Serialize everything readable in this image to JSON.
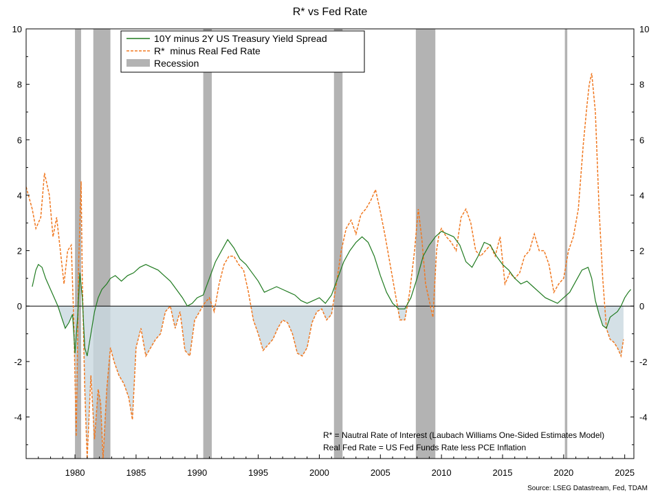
{
  "chart_data": {
    "type": "line",
    "title": "R* vs Fed Rate",
    "xlim": [
      1976.0,
      2025.75
    ],
    "ylim": [
      -5.5,
      10
    ],
    "y_ticks": [
      -4,
      -2,
      0,
      2,
      4,
      6,
      8,
      10
    ],
    "y_tick_labels": [
      "-4",
      "-2",
      "0",
      "2",
      "4",
      "6",
      "8",
      "10"
    ],
    "x_ticks": [
      1980,
      1985,
      1990,
      1995,
      2000,
      2005,
      2010,
      2015,
      2020,
      2025
    ],
    "x_tick_labels": [
      "1980",
      "1985",
      "1990",
      "1995",
      "2000",
      "2005",
      "2010",
      "2015",
      "2020",
      "2025"
    ],
    "legend_position": "top-left",
    "colors": {
      "spread": "#1f7a1f",
      "rstar": "#f07820",
      "recession": "#b3b3b3",
      "fill": "#c9d8e0",
      "zero_line": "#000000"
    },
    "recessions": [
      [
        1980.0,
        1980.5
      ],
      [
        1981.5,
        1982.9
      ],
      [
        1990.5,
        1991.2
      ],
      [
        2001.2,
        2001.9
      ],
      [
        2007.9,
        2009.5
      ],
      [
        2020.1,
        2020.3
      ]
    ],
    "series": [
      {
        "name": "10Y minus 2Y US Treasury Yield Spread",
        "style": "solid",
        "x": [
          1976.5,
          1976.8,
          1977.0,
          1977.3,
          1977.6,
          1978.0,
          1978.3,
          1978.6,
          1978.9,
          1979.2,
          1979.5,
          1979.8,
          1980.0,
          1980.2,
          1980.4,
          1980.6,
          1980.8,
          1981.0,
          1981.3,
          1981.6,
          1981.9,
          1982.2,
          1982.6,
          1982.9,
          1983.3,
          1983.8,
          1984.3,
          1984.8,
          1985.3,
          1985.8,
          1986.3,
          1986.8,
          1987.3,
          1987.8,
          1988.3,
          1988.8,
          1989.2,
          1989.6,
          1990.0,
          1990.5,
          1991.0,
          1991.5,
          1992.0,
          1992.5,
          1993.0,
          1993.5,
          1994.0,
          1994.5,
          1995.0,
          1995.5,
          1996.0,
          1996.5,
          1997.0,
          1997.5,
          1998.0,
          1998.5,
          1999.0,
          1999.5,
          2000.0,
          2000.5,
          2001.0,
          2001.5,
          2002.0,
          2002.5,
          2003.0,
          2003.5,
          2004.0,
          2004.5,
          2005.0,
          2005.5,
          2006.0,
          2006.5,
          2007.0,
          2007.5,
          2008.0,
          2008.5,
          2009.0,
          2009.5,
          2010.0,
          2010.5,
          2011.0,
          2011.5,
          2012.0,
          2012.5,
          2013.0,
          2013.5,
          2014.0,
          2014.5,
          2015.0,
          2015.5,
          2016.0,
          2016.5,
          2017.0,
          2017.5,
          2018.0,
          2018.5,
          2019.0,
          2019.5,
          2020.0,
          2020.5,
          2021.0,
          2021.5,
          2022.0,
          2022.3,
          2022.6,
          2022.9,
          2023.2,
          2023.5,
          2023.8,
          2024.1,
          2024.4,
          2024.7,
          2025.0,
          2025.3,
          2025.5
        ],
        "y": [
          0.7,
          1.3,
          1.5,
          1.4,
          1.0,
          0.6,
          0.3,
          0.0,
          -0.4,
          -0.8,
          -0.6,
          -0.3,
          -1.7,
          -0.5,
          1.2,
          0.3,
          -1.5,
          -1.8,
          -1.0,
          -0.2,
          0.3,
          0.6,
          0.8,
          1.0,
          1.1,
          0.9,
          1.1,
          1.2,
          1.4,
          1.5,
          1.4,
          1.3,
          1.1,
          0.9,
          0.6,
          0.3,
          0.0,
          0.1,
          0.3,
          0.4,
          1.0,
          1.6,
          2.0,
          2.4,
          2.1,
          1.7,
          1.5,
          1.2,
          0.9,
          0.5,
          0.6,
          0.7,
          0.6,
          0.5,
          0.4,
          0.2,
          0.1,
          0.2,
          0.3,
          0.1,
          0.4,
          1.0,
          1.6,
          2.0,
          2.3,
          2.5,
          2.3,
          1.8,
          1.1,
          0.5,
          0.1,
          -0.1,
          -0.1,
          0.3,
          1.0,
          1.8,
          2.2,
          2.5,
          2.7,
          2.6,
          2.5,
          2.2,
          1.6,
          1.4,
          1.8,
          2.3,
          2.2,
          1.8,
          1.5,
          1.3,
          1.0,
          0.8,
          0.9,
          0.7,
          0.5,
          0.3,
          0.2,
          0.1,
          0.3,
          0.5,
          0.9,
          1.3,
          1.4,
          1.0,
          0.2,
          -0.3,
          -0.7,
          -0.8,
          -0.4,
          -0.3,
          -0.2,
          0.0,
          0.3,
          0.5,
          0.6
        ]
      },
      {
        "name": "R*  minus Real Fed Rate",
        "style": "dashed",
        "x": [
          1976.0,
          1976.5,
          1976.8,
          1977.2,
          1977.5,
          1977.9,
          1978.2,
          1978.5,
          1978.8,
          1979.1,
          1979.4,
          1979.7,
          1979.9,
          1980.1,
          1980.3,
          1980.5,
          1980.6,
          1980.8,
          1981.0,
          1981.3,
          1981.6,
          1981.9,
          1982.1,
          1982.3,
          1982.6,
          1982.9,
          1983.2,
          1983.6,
          1984.0,
          1984.4,
          1984.7,
          1985.0,
          1985.4,
          1985.8,
          1986.2,
          1986.6,
          1987.0,
          1987.4,
          1987.8,
          1988.2,
          1988.6,
          1989.0,
          1989.4,
          1989.8,
          1990.2,
          1990.6,
          1991.0,
          1991.4,
          1991.8,
          1992.2,
          1992.6,
          1993.0,
          1993.4,
          1993.8,
          1994.2,
          1994.6,
          1995.0,
          1995.4,
          1995.8,
          1996.2,
          1996.6,
          1997.0,
          1997.4,
          1997.8,
          1998.2,
          1998.6,
          1999.0,
          1999.4,
          1999.8,
          2000.2,
          2000.6,
          2001.0,
          2001.4,
          2001.8,
          2002.2,
          2002.6,
          2003.0,
          2003.4,
          2003.8,
          2004.2,
          2004.6,
          2005.0,
          2005.4,
          2005.8,
          2006.2,
          2006.6,
          2007.0,
          2007.4,
          2007.8,
          2008.1,
          2008.4,
          2008.7,
          2009.0,
          2009.3,
          2009.6,
          2009.8,
          2010.0,
          2010.4,
          2010.8,
          2011.2,
          2011.6,
          2012.0,
          2012.4,
          2012.8,
          2013.2,
          2013.6,
          2014.0,
          2014.4,
          2014.8,
          2015.2,
          2015.6,
          2016.0,
          2016.4,
          2016.8,
          2017.2,
          2017.6,
          2018.0,
          2018.4,
          2018.8,
          2019.2,
          2019.6,
          2020.0,
          2020.4,
          2020.8,
          2021.2,
          2021.6,
          2021.9,
          2022.1,
          2022.3,
          2022.6,
          2022.9,
          2023.2,
          2023.5,
          2023.8,
          2024.1,
          2024.4,
          2024.7,
          2024.9
        ],
        "y": [
          4.3,
          3.5,
          2.8,
          3.2,
          4.8,
          4.0,
          2.5,
          3.2,
          2.0,
          0.8,
          2.0,
          2.2,
          -0.5,
          -4.7,
          1.5,
          4.5,
          1.0,
          -3.0,
          -5.5,
          -2.5,
          -4.8,
          -3.0,
          -3.5,
          -5.5,
          -3.0,
          -1.5,
          -2.0,
          -2.5,
          -2.8,
          -3.3,
          -4.1,
          -1.5,
          -0.8,
          -1.8,
          -1.5,
          -1.2,
          -1.0,
          -0.2,
          0.0,
          -0.8,
          -0.2,
          -1.6,
          -1.8,
          -0.5,
          -0.2,
          0.1,
          0.3,
          -0.2,
          0.8,
          1.5,
          1.8,
          1.8,
          1.5,
          1.3,
          0.5,
          -0.5,
          -1.0,
          -1.6,
          -1.4,
          -1.2,
          -0.8,
          -0.5,
          -0.6,
          -1.0,
          -1.7,
          -1.8,
          -1.5,
          -0.6,
          -0.2,
          -0.1,
          -0.5,
          -0.3,
          0.8,
          2.0,
          2.8,
          3.1,
          2.6,
          3.3,
          3.5,
          3.8,
          4.2,
          3.4,
          2.5,
          1.5,
          0.5,
          -0.5,
          -0.5,
          0.5,
          2.0,
          3.5,
          2.4,
          0.8,
          0.2,
          -0.4,
          2.0,
          2.6,
          2.8,
          2.5,
          2.3,
          2.0,
          3.2,
          3.5,
          3.0,
          2.0,
          1.8,
          2.0,
          2.2,
          1.8,
          2.5,
          0.8,
          1.2,
          1.0,
          1.2,
          1.8,
          2.0,
          2.6,
          2.0,
          2.0,
          1.5,
          0.5,
          0.8,
          1.0,
          2.0,
          2.5,
          3.5,
          5.8,
          7.2,
          8.0,
          8.4,
          7.0,
          3.5,
          1.0,
          -0.8,
          -1.2,
          -1.3,
          -1.5,
          -1.8,
          -1.2
        ]
      }
    ],
    "legend": [
      {
        "label": "10Y minus 2Y US Treasury Yield Spread",
        "kind": "line-solid"
      },
      {
        "label": "R*  minus Real Fed Rate",
        "kind": "line-dashed"
      },
      {
        "label": "Recession",
        "kind": "box"
      }
    ],
    "notes": [
      "R* = Nautral Rate of Interest (Laubach Williams One-Sided Estimates Model)",
      "Real Fed Rate = US Fed Funds Rate less PCE Inflation"
    ],
    "source": "Source: LSEG Datastream, Fed, TDAM"
  }
}
